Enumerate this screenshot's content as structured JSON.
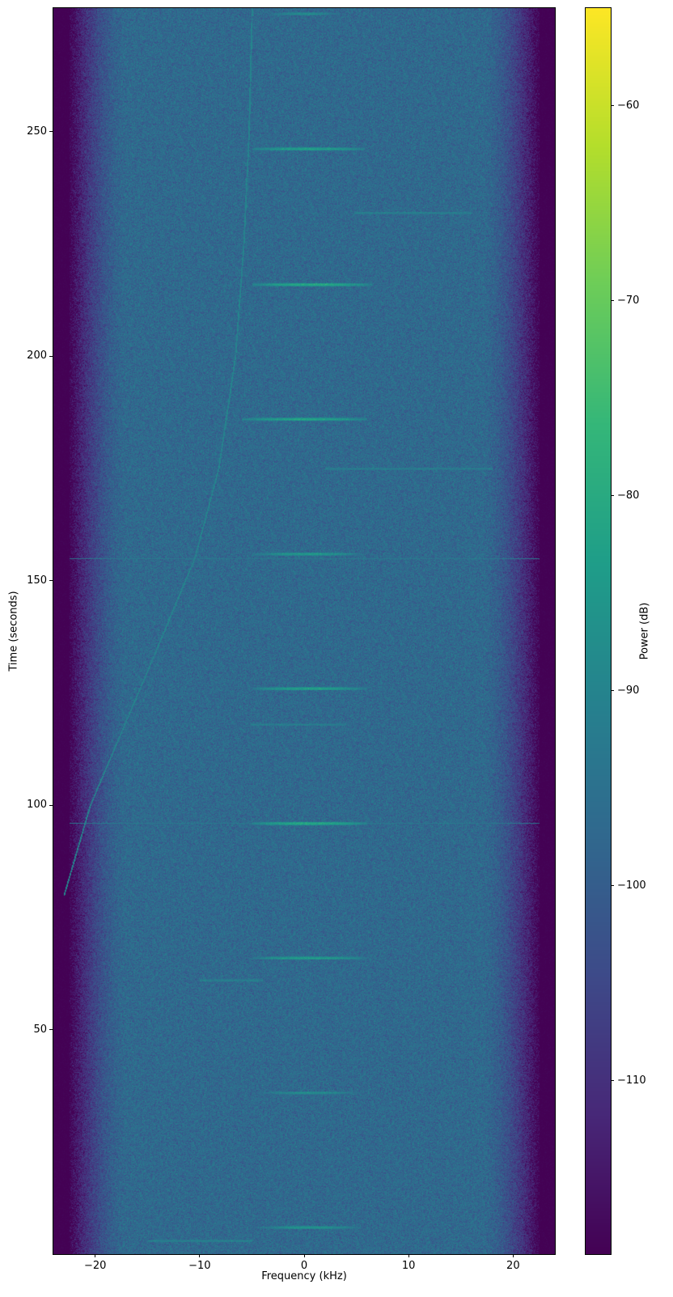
{
  "chart_data": {
    "type": "heatmap",
    "title": "",
    "xlabel": "Frequency (kHz)",
    "ylabel": "Time (seconds)",
    "xlim": [
      -24,
      24
    ],
    "ylim": [
      0,
      277.5
    ],
    "xticks": [
      -20,
      -10,
      0,
      10,
      20
    ],
    "yticks": [
      50,
      100,
      150,
      200,
      250
    ],
    "colorbar": {
      "label": "Power (dB)",
      "colormap": "viridis",
      "clim": [
        -118.9,
        -55
      ],
      "ticks": [
        -60,
        -70,
        -80,
        -90,
        -100,
        -110
      ]
    },
    "noise_floor_db": -97,
    "band_edge_rolloff_khz": [
      17,
      22.5
    ],
    "bursts": [
      {
        "time": 6,
        "f_start": -4.5,
        "f_end": 5.5,
        "peak_db": -84
      },
      {
        "time": 36,
        "f_start": -4.5,
        "f_end": 5.5,
        "peak_db": -86
      },
      {
        "time": 66,
        "f_start": -5,
        "f_end": 6,
        "peak_db": -82
      },
      {
        "time": 96,
        "f_start": -5,
        "f_end": 6,
        "peak_db": -79
      },
      {
        "time": 126,
        "f_start": -5,
        "f_end": 6,
        "peak_db": -81
      },
      {
        "time": 156,
        "f_start": -5,
        "f_end": 5.5,
        "peak_db": -83
      },
      {
        "time": 186,
        "f_start": -6,
        "f_end": 6,
        "peak_db": -80
      },
      {
        "time": 216,
        "f_start": -5,
        "f_end": 6.5,
        "peak_db": -79
      },
      {
        "time": 246.2,
        "f_start": -5,
        "f_end": 5.8,
        "peak_db": -81
      },
      {
        "time": 276.3,
        "f_start": -3.5,
        "f_end": 3.5,
        "peak_db": -86
      }
    ],
    "faint_lines": [
      {
        "time": 3,
        "f_start": -15,
        "f_end": -5,
        "peak_db": -90
      },
      {
        "time": 61,
        "f_start": -10,
        "f_end": -4,
        "peak_db": -90
      },
      {
        "time": 118,
        "f_start": -5,
        "f_end": 4,
        "peak_db": -91
      },
      {
        "time": 175,
        "f_start": 2,
        "f_end": 18,
        "peak_db": -91
      },
      {
        "time": 232,
        "f_start": 4.8,
        "f_end": 16,
        "peak_db": -90
      }
    ],
    "broadband_lines": [
      96,
      155
    ],
    "drifting_tone": {
      "time": [
        80,
        100,
        130,
        155,
        175,
        200,
        225,
        250,
        278
      ],
      "freq": [
        -23,
        -20.5,
        -15,
        -10.5,
        -8.2,
        -6.6,
        -5.8,
        -5.3,
        -5
      ]
    }
  }
}
